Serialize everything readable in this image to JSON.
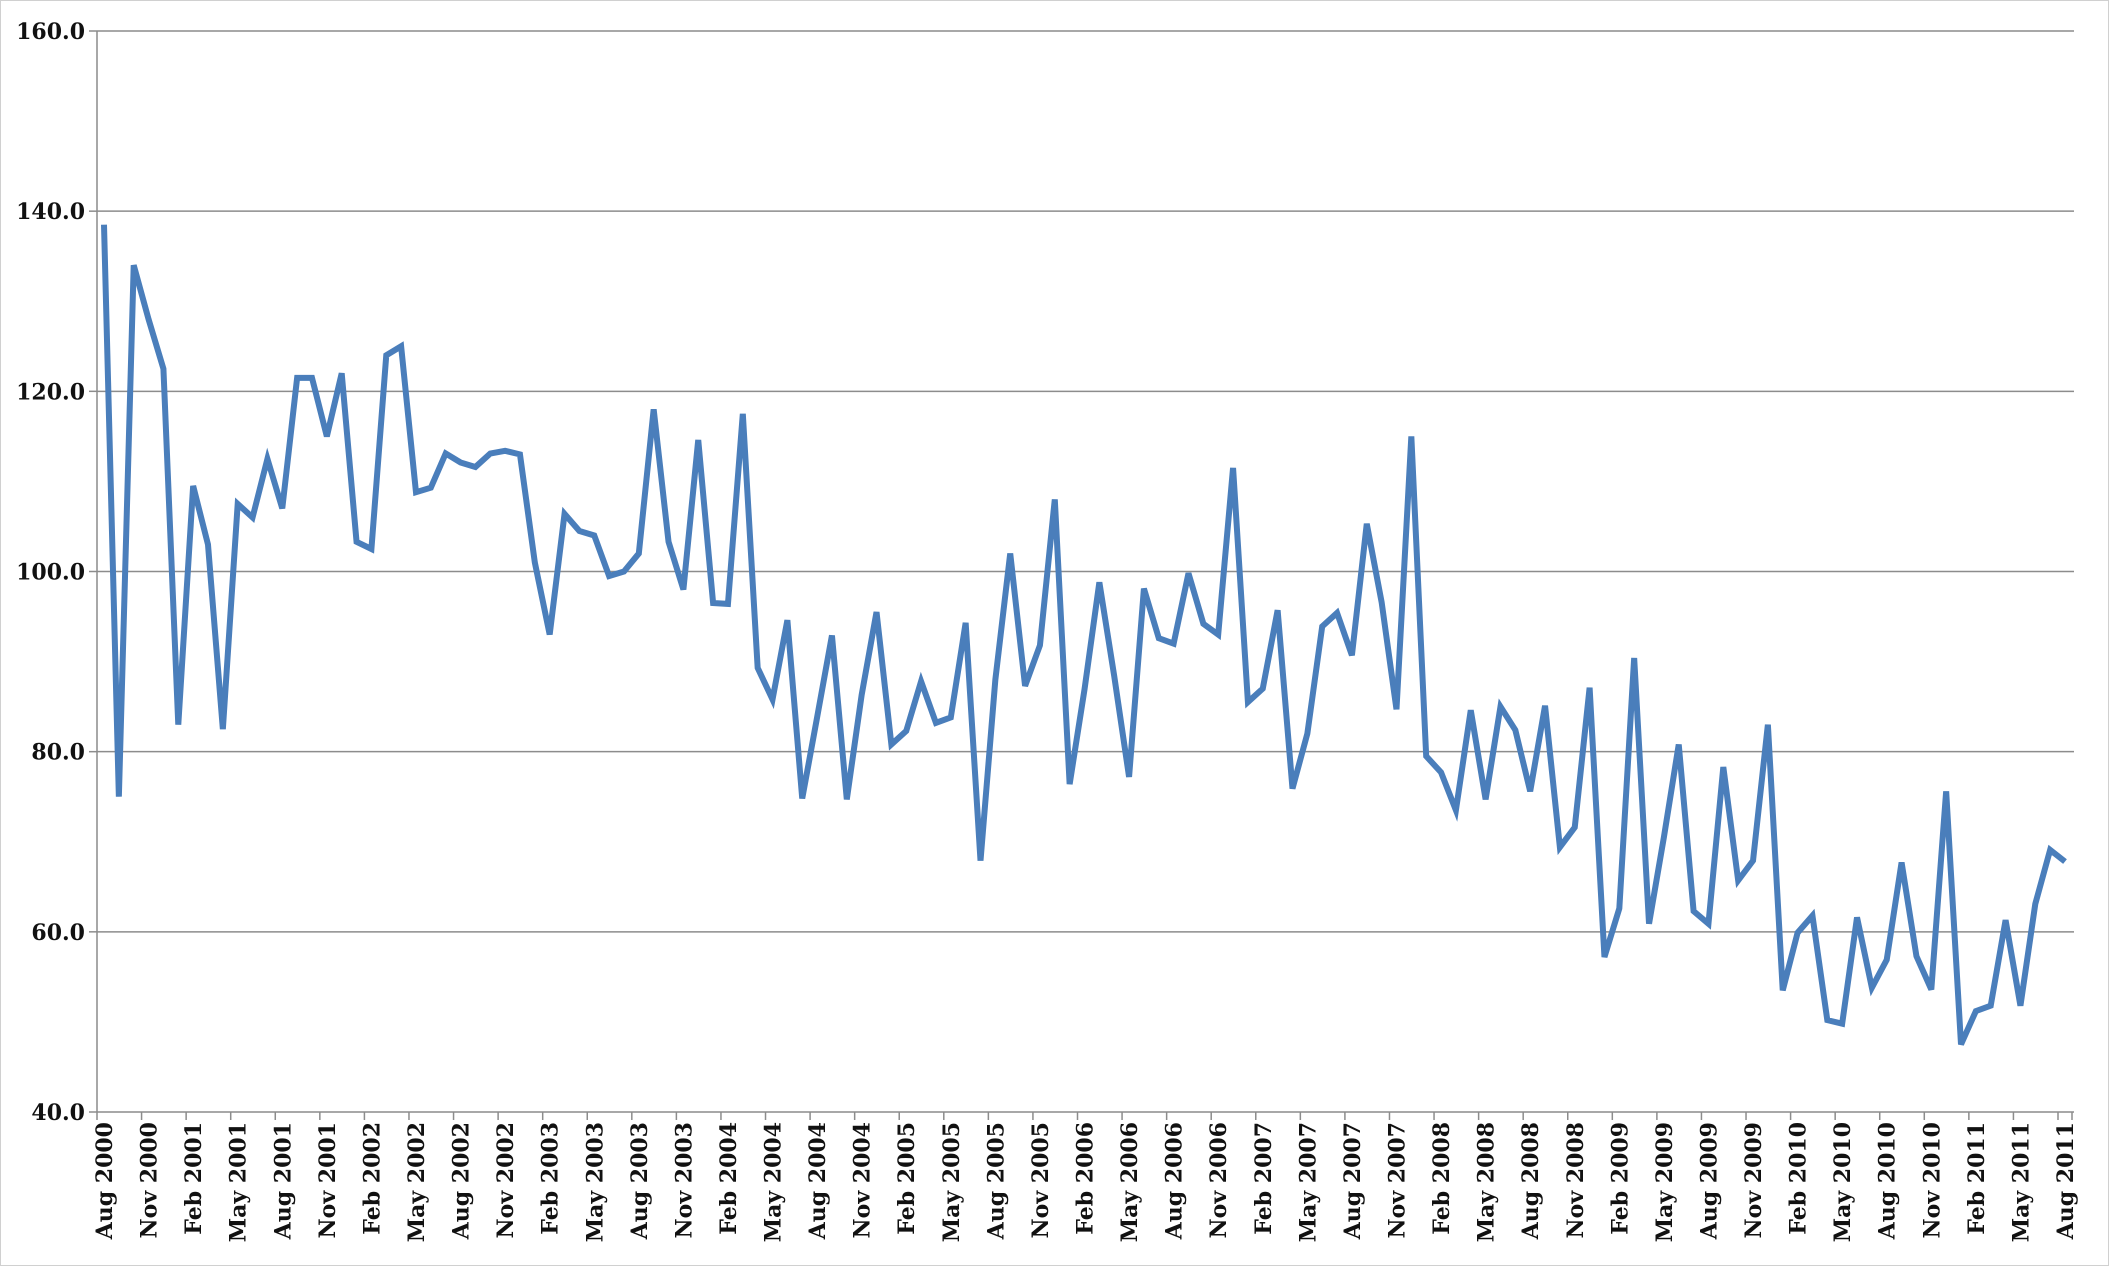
{
  "chart_data": {
    "type": "line",
    "title": "",
    "xlabel": "",
    "ylabel": "",
    "ylim": [
      40,
      160
    ],
    "yticks": [
      "40.0",
      "60.0",
      "80.0",
      "100.0",
      "120.0",
      "140.0",
      "160.0"
    ],
    "grid": true,
    "legend": "none",
    "x_start": "Aug 2000",
    "x_end": "Aug 2011",
    "x_tick_labels": [
      "Aug 2000",
      "Nov 2000",
      "Feb 2001",
      "May 2001",
      "Aug 2001",
      "Nov 2001",
      "Feb 2002",
      "May 2002",
      "Aug 2002",
      "Nov 2002",
      "Feb 2003",
      "May 2003",
      "Aug 2003",
      "Nov 2003",
      "Feb 2004",
      "May 2004",
      "Aug 2004",
      "Nov 2004",
      "Feb 2005",
      "May 2005",
      "Aug 2005",
      "Nov 2005",
      "Feb 2006",
      "May 2006",
      "Aug 2006",
      "Nov 2006",
      "Feb 2007",
      "May 2007",
      "Aug 2007",
      "Nov 2007",
      "Feb 2008",
      "May 2008",
      "Aug 2008",
      "Nov 2008",
      "Feb 2009",
      "May 2009",
      "Aug 2009",
      "Nov 2009",
      "Feb 2010",
      "May 2010",
      "Aug 2010",
      "Nov 2010",
      "Feb 2011",
      "May 2011",
      "Aug 2011"
    ],
    "series": [
      {
        "color": "#4a7ebb",
        "values": [
          138.5,
          75,
          134,
          128,
          122.5,
          83,
          109.5,
          103,
          82.5,
          107.5,
          106,
          112.5,
          107,
          121.5,
          121.5,
          115,
          122,
          103.3,
          102.5,
          124,
          125,
          108.8,
          109.3,
          113.1,
          112.1,
          111.6,
          113.1,
          113.4,
          113,
          101,
          93,
          106.4,
          104.5,
          104,
          99.5,
          100,
          102,
          118,
          103.3,
          98,
          114.6,
          96.5,
          96.4,
          117.5,
          89.3,
          85.8,
          94.6,
          74.8,
          83.8,
          92.9,
          74.7,
          86.3,
          95.5,
          80.8,
          82.3,
          87.8,
          83.2,
          83.8,
          94.3,
          67.9,
          88,
          102,
          87.3,
          91.8,
          108,
          76.4,
          86.9,
          98.8,
          88.4,
          77.2,
          98.1,
          92.6,
          92,
          99.8,
          94.2,
          93,
          111.5,
          85.5,
          87,
          95.7,
          75.9,
          82,
          93.9,
          95.4,
          90.7,
          105.3,
          96.6,
          84.7,
          115,
          79.5,
          77.7,
          73.5,
          84.6,
          74.7,
          85,
          82.4,
          75.6,
          85.1,
          69.4,
          71.6,
          87.1,
          57.2,
          62.6,
          90.4,
          60.9,
          70.5,
          80.8,
          62.3,
          60.9,
          78.3,
          65.7,
          67.9,
          83,
          53.5,
          59.9,
          61.8,
          50.2,
          49.8,
          61.6,
          53.8,
          56.9,
          67.7,
          57.3,
          53.6,
          75.6,
          47.5,
          51.2,
          51.8,
          61.3,
          51.8,
          63.1,
          69.1,
          67.8
        ]
      }
    ]
  }
}
